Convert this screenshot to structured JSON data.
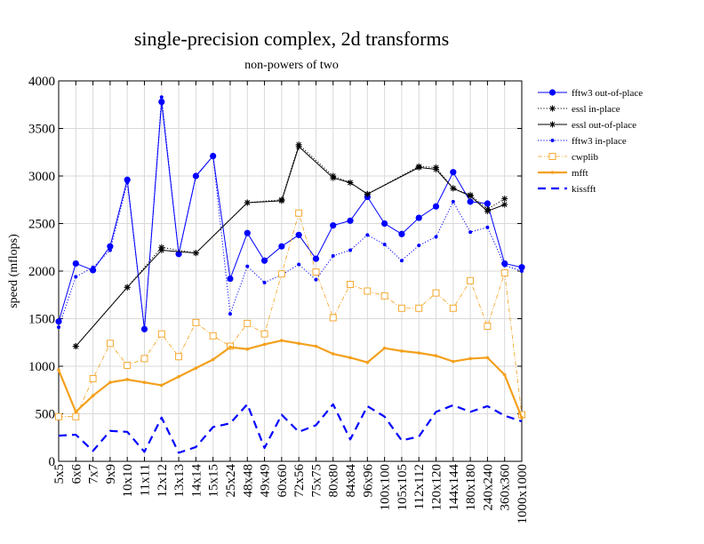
{
  "chart_data": {
    "type": "line",
    "title": "single-precision complex, 2d transforms",
    "subtitle": "non-powers of two",
    "xlabel": "",
    "ylabel": "speed (mflops)",
    "ylim": [
      0,
      4000
    ],
    "yticks": [
      0,
      500,
      1000,
      1500,
      2000,
      2500,
      3000,
      3500,
      4000
    ],
    "grid": true,
    "legend_position": "right",
    "categories": [
      "5x5",
      "6x6",
      "7x7",
      "9x9",
      "10x10",
      "11x11",
      "12x12",
      "13x13",
      "14x14",
      "15x15",
      "25x24",
      "48x48",
      "49x49",
      "60x60",
      "72x56",
      "75x75",
      "80x80",
      "84x84",
      "96x96",
      "100x100",
      "105x105",
      "112x112",
      "120x120",
      "144x144",
      "180x180",
      "240x240",
      "360x360",
      "1000x1000"
    ],
    "series": [
      {
        "name": "fftw3 out-of-place",
        "color": "#0000ff",
        "style": "solid",
        "marker": "circle-large",
        "values": [
          1470,
          2080,
          2010,
          2260,
          2960,
          1390,
          3780,
          2180,
          3000,
          3210,
          1920,
          2400,
          2110,
          2260,
          2380,
          2130,
          2480,
          2530,
          2780,
          2500,
          2390,
          2560,
          2680,
          3040,
          2730,
          2710,
          2080,
          2040
        ]
      },
      {
        "name": "essl in-place",
        "color": "#000000",
        "style": "dotted",
        "marker": "asterisk",
        "values": [
          null,
          1210,
          null,
          null,
          1830,
          null,
          2250,
          null,
          2190,
          null,
          null,
          2720,
          null,
          2750,
          3330,
          null,
          3000,
          2930,
          2810,
          null,
          null,
          3100,
          3090,
          2870,
          2800,
          2650,
          2760,
          null
        ]
      },
      {
        "name": "essl out-of-place",
        "color": "#000000",
        "style": "solid",
        "marker": "asterisk",
        "values": [
          null,
          1210,
          null,
          null,
          1830,
          null,
          2220,
          null,
          2190,
          null,
          null,
          2720,
          null,
          2740,
          3310,
          null,
          2980,
          2930,
          2810,
          null,
          null,
          3090,
          3070,
          2870,
          2790,
          2630,
          2700,
          null
        ]
      },
      {
        "name": "fftw3 in-place",
        "color": "#0000ff",
        "style": "dotted",
        "marker": "circle-small",
        "values": [
          1410,
          1940,
          2040,
          2220,
          2930,
          1390,
          3830,
          2180,
          2990,
          3210,
          1550,
          2050,
          1880,
          1960,
          2070,
          1910,
          2160,
          2220,
          2380,
          2280,
          2110,
          2270,
          2360,
          2730,
          2410,
          2460,
          2060,
          2000
        ]
      },
      {
        "name": "cwplib",
        "color": "#f4a01c",
        "style": "dashdot",
        "marker": "square-open",
        "values": [
          470,
          470,
          870,
          1240,
          1010,
          1080,
          1340,
          1100,
          1460,
          1320,
          1210,
          1450,
          1340,
          1970,
          2610,
          1990,
          1510,
          1860,
          1790,
          1740,
          1610,
          1610,
          1770,
          1610,
          1900,
          1420,
          1980,
          490
        ]
      },
      {
        "name": "mfft",
        "color": "#f4a01c",
        "style": "solid-thick",
        "marker": "dot-small",
        "values": [
          960,
          520,
          690,
          830,
          860,
          830,
          800,
          890,
          980,
          1070,
          1200,
          1180,
          1230,
          1270,
          1240,
          1210,
          1130,
          1090,
          1040,
          1190,
          1160,
          1140,
          1110,
          1050,
          1080,
          1090,
          910,
          460
        ]
      },
      {
        "name": "kissfft",
        "color": "#0000ff",
        "style": "dashed-thick",
        "marker": "none",
        "values": [
          270,
          280,
          110,
          320,
          310,
          100,
          460,
          90,
          150,
          360,
          400,
          600,
          140,
          490,
          310,
          380,
          600,
          230,
          580,
          470,
          220,
          260,
          520,
          590,
          520,
          580,
          480,
          420
        ]
      }
    ]
  }
}
